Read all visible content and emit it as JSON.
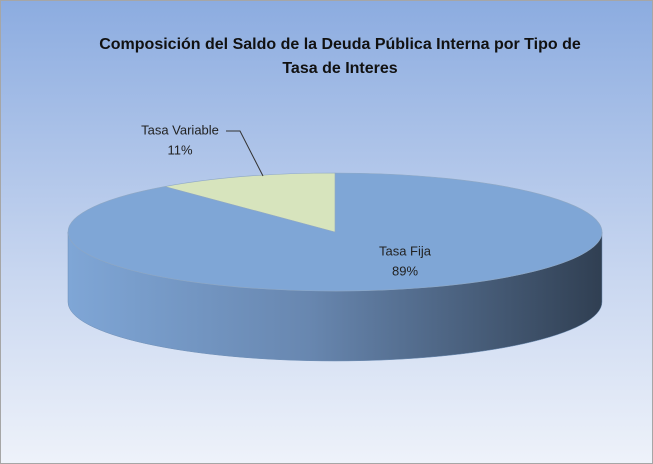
{
  "chart_data": {
    "type": "pie3d",
    "title": "Composición del Saldo de la Deuda Pública Interna por Tipo de Tasa de Interes",
    "categories": [
      "Tasa Fija",
      "Tasa Variable"
    ],
    "values": [
      89,
      11
    ],
    "value_labels": [
      "89%",
      "11%"
    ],
    "colors": [
      "#7fa6d6",
      "#d7e4bd"
    ]
  }
}
